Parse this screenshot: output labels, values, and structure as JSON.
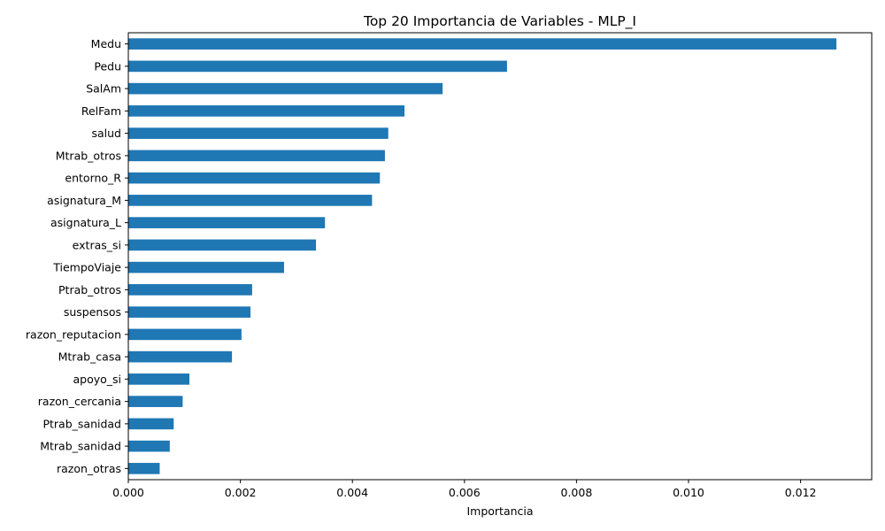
{
  "chart_data": {
    "type": "bar",
    "orientation": "horizontal",
    "title": "Top 20 Importancia de Variables - MLP_I",
    "xlabel": "Importancia",
    "ylabel": "",
    "xlim": [
      0,
      0.01327
    ],
    "x_ticks": [
      0.0,
      0.002,
      0.004,
      0.006,
      0.008,
      0.01,
      0.012
    ],
    "x_tick_labels": [
      "0.000",
      "0.002",
      "0.004",
      "0.006",
      "0.008",
      "0.010",
      "0.012"
    ],
    "grid": false,
    "legend": "none",
    "bar_color": "#1f77b4",
    "categories": [
      "Medu",
      "Pedu",
      "SalAm",
      "RelFam",
      "salud",
      "Mtrab_otros",
      "entorno_R",
      "asignatura_M",
      "asignatura_L",
      "extras_si",
      "TiempoViaje",
      "Ptrab_otros",
      "suspensos",
      "razon_reputacion",
      "Mtrab_casa",
      "apoyo_si",
      "razon_cercania",
      "Ptrab_sanidad",
      "Mtrab_sanidad",
      "razon_otras"
    ],
    "values": [
      0.01264,
      0.00676,
      0.00561,
      0.00493,
      0.00464,
      0.00458,
      0.00449,
      0.00435,
      0.00351,
      0.00335,
      0.00278,
      0.00221,
      0.00218,
      0.00202,
      0.00185,
      0.00109,
      0.00097,
      0.00081,
      0.00074,
      0.00056
    ]
  }
}
